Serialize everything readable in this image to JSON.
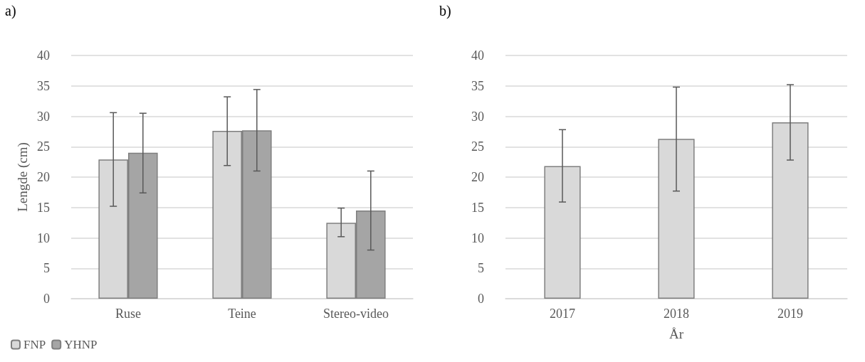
{
  "chart_data": [
    {
      "type": "bar",
      "title": "a)",
      "ylabel": "Lengde (cm)",
      "categories": [
        "Ruse",
        "Teine",
        "Stereo-video"
      ],
      "series": [
        {
          "name": "FNP",
          "color": "#d9d9d9",
          "values": [
            22.9,
            27.6,
            12.5
          ],
          "errors": [
            [
              15.2,
              30.6
            ],
            [
              21.9,
              33.2
            ],
            [
              10.2,
              14.9
            ]
          ]
        },
        {
          "name": "YHNP",
          "color": "#a5a5a5",
          "values": [
            24.0,
            27.7,
            14.5
          ],
          "errors": [
            [
              17.4,
              30.5
            ],
            [
              21.0,
              34.4
            ],
            [
              8.0,
              21.0
            ]
          ]
        }
      ],
      "ylim": [
        0,
        40
      ],
      "yticks": [
        0,
        5,
        10,
        15,
        20,
        25,
        30,
        35,
        40
      ],
      "grid": "y",
      "legend": "bottom left"
    },
    {
      "type": "bar",
      "title": "b)",
      "xlabel": "År",
      "categories": [
        "2017",
        "2018",
        "2019"
      ],
      "series": [
        {
          "color": "#d9d9d9",
          "values": [
            21.8,
            26.3,
            29.0
          ],
          "errors": [
            [
              15.9,
              27.8
            ],
            [
              17.7,
              34.8
            ],
            [
              22.8,
              35.2
            ]
          ]
        }
      ],
      "ylim": [
        0,
        40
      ],
      "yticks": [
        0,
        5,
        10,
        15,
        20,
        25,
        30,
        35,
        40
      ],
      "grid": "y"
    }
  ]
}
